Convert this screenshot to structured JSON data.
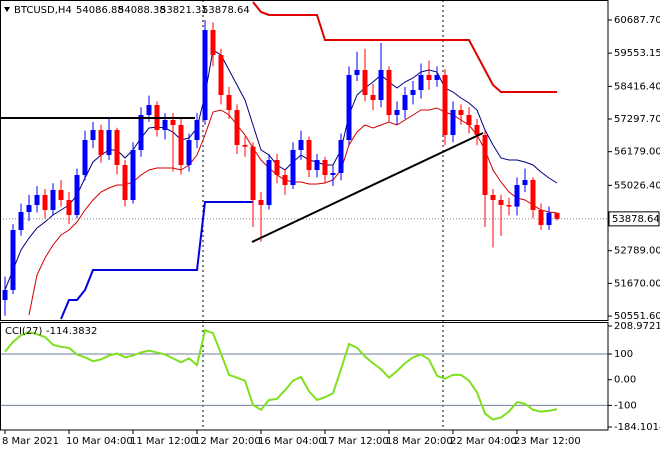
{
  "chart_data": [
    {
      "type": "candlestick",
      "title": "BTCUSD,H4",
      "categories": [
        "8 Mar 2021",
        null,
        null,
        null,
        null,
        null,
        null,
        null,
        "10 Mar 04:00",
        null,
        null,
        null,
        null,
        null,
        null,
        null,
        "11 Mar 12:00",
        null,
        null,
        null,
        null,
        null,
        null,
        null,
        "12 Mar 20:00",
        null,
        null,
        null,
        null,
        null,
        null,
        null,
        "16 Mar 04:00",
        null,
        null,
        null,
        null,
        null,
        null,
        null,
        "17 Mar 12:00",
        null,
        null,
        null,
        null,
        null,
        null,
        null,
        "18 Mar 20:00",
        null,
        null,
        null,
        null,
        null,
        null,
        null,
        "22 Mar 04:00",
        null,
        null,
        null,
        null,
        null,
        null,
        null,
        "23 Mar 12:00",
        null,
        null,
        null,
        null,
        null
      ],
      "open": [
        51100,
        51443,
        53497,
        54114,
        54353,
        54696,
        54182,
        54867,
        54525,
        54011,
        55381,
        56579,
        56921,
        56065,
        56921,
        55723,
        54525,
        56237,
        57435,
        57777,
        56921,
        57264,
        57093,
        55723,
        56579,
        57264,
        60345,
        59489,
        58120,
        57606,
        56408,
        56350,
        54525,
        54353,
        55894,
        55381,
        55038,
        56237,
        56579,
        55552,
        55894,
        55381,
        55450,
        56579,
        58805,
        58976,
        58120,
        57949,
        58976,
        57435,
        57606,
        58120,
        58291,
        58805,
        58633,
        58805,
        56750,
        57606,
        57435,
        57093,
        56750,
        54696,
        54525,
        54353,
        54300,
        55038,
        55210,
        54182,
        53668,
        54086.88
      ],
      "high": [
        51900,
        53700,
        54400,
        54700,
        55000,
        54900,
        55100,
        55200,
        54800,
        55600,
        56900,
        57200,
        57100,
        57300,
        57000,
        55900,
        56500,
        57700,
        58100,
        57900,
        57500,
        57500,
        57300,
        56800,
        57500,
        60688,
        60600,
        59700,
        58400,
        57800,
        56700,
        56500,
        54800,
        56100,
        56100,
        55600,
        56500,
        56900,
        56700,
        56100,
        56000,
        55700,
        56800,
        59100,
        59600,
        59700,
        58500,
        59900,
        59100,
        57900,
        58400,
        58600,
        59200,
        59300,
        59100,
        59000,
        57900,
        57800,
        57700,
        57300,
        56900,
        54900,
        54700,
        54600,
        55300,
        55600,
        55300,
        54400,
        54300,
        54088.38
      ],
      "low": [
        50560,
        51300,
        53300,
        53800,
        54100,
        53900,
        54000,
        54300,
        53700,
        53900,
        55200,
        56300,
        55800,
        55900,
        55400,
        54300,
        54400,
        56000,
        57200,
        56700,
        56600,
        55500,
        55400,
        55500,
        56300,
        57100,
        59100,
        57800,
        57300,
        56100,
        56000,
        53600,
        53100,
        54200,
        55100,
        54700,
        54900,
        55900,
        55300,
        55300,
        55100,
        55000,
        55200,
        56400,
        58600,
        57900,
        57600,
        57700,
        57200,
        57100,
        57300,
        57800,
        58000,
        58300,
        58400,
        56400,
        56500,
        57100,
        56800,
        56400,
        53600,
        52900,
        53300,
        54000,
        54000,
        54800,
        53900,
        53500,
        53500,
        53821.31
      ],
      "close": [
        51443,
        53497,
        54114,
        54353,
        54696,
        54182,
        54867,
        54525,
        54011,
        55381,
        56579,
        56921,
        56065,
        56921,
        55723,
        54525,
        56237,
        57435,
        57777,
        56921,
        57264,
        57093,
        55723,
        56579,
        57264,
        60345,
        59489,
        58120,
        57606,
        56408,
        56350,
        54525,
        54353,
        55894,
        55381,
        55038,
        56237,
        56579,
        55552,
        55894,
        55381,
        55450,
        56579,
        58805,
        58976,
        58120,
        57949,
        58976,
        57435,
        57606,
        58120,
        58291,
        58805,
        58633,
        58805,
        56750,
        57606,
        57435,
        57093,
        56750,
        54696,
        54525,
        54353,
        54300,
        55038,
        55210,
        54182,
        53668,
        54087,
        53878.64
      ],
      "up_color": "#0000ff",
      "down_color": "#ff0000",
      "overlays": [
        {
          "color": "#00007f",
          "width": 1,
          "values": [
            51443,
            52128,
            52813,
            53223,
            53566,
            53771,
            54011,
            54182,
            54353,
            54696,
            55278,
            55826,
            56065,
            56237,
            56237,
            55963,
            56237,
            56647,
            56990,
            57024,
            56990,
            56853,
            56579,
            56647,
            56990,
            58120,
            59661,
            59489,
            58976,
            58462,
            57949,
            57093,
            56237,
            56065,
            55723,
            55552,
            55826,
            56065,
            55894,
            55826,
            55723,
            55723,
            56237,
            57435,
            58120,
            58359,
            58565,
            58805,
            58565,
            58359,
            58565,
            58702,
            58907,
            58976,
            58907,
            58359,
            58222,
            58017,
            57846,
            57606,
            56921,
            56408,
            55963,
            55894,
            55894,
            55826,
            55723,
            55483,
            55278,
            55107
          ]
        },
        {
          "color": "#d00000",
          "width": 1,
          "values": [
            null,
            null,
            null,
            50587,
            51957,
            52539,
            52984,
            53326,
            53497,
            53771,
            54182,
            54525,
            54798,
            54935,
            55038,
            55038,
            55141,
            55381,
            55552,
            55620,
            55620,
            55620,
            55552,
            55723,
            56065,
            56750,
            57538,
            57606,
            57435,
            57093,
            56750,
            56305,
            55894,
            55620,
            55381,
            55209,
            55141,
            55141,
            55072,
            55072,
            55107,
            55209,
            55552,
            56408,
            56853,
            57093,
            56990,
            57093,
            57195,
            57093,
            57264,
            57435,
            57606,
            57606,
            57675,
            57538,
            57435,
            57264,
            57093,
            56750,
            56237,
            55552,
            55141,
            54798,
            54593,
            54525,
            54353,
            54182,
            54114,
            54079
          ]
        },
        {
          "color": "#e00000",
          "width": 2,
          "values": [
            null,
            null,
            null,
            null,
            null,
            null,
            null,
            null,
            null,
            null,
            null,
            null,
            null,
            null,
            null,
            null,
            null,
            null,
            null,
            null,
            null,
            null,
            null,
            null,
            null,
            null,
            null,
            null,
            null,
            null,
            null,
            61304,
            60962,
            60859,
            60859,
            60859,
            60859,
            60859,
            60859,
            60859,
            60003,
            60003,
            60003,
            60003,
            60003,
            60003,
            60003,
            60003,
            60003,
            60003,
            60003,
            60003,
            60003,
            60003,
            60003,
            60003,
            60003,
            60003,
            60003,
            59489,
            58976,
            58462,
            58223,
            58223,
            58223,
            58223,
            58223,
            58223,
            58223,
            58223
          ]
        },
        {
          "color": "#0000e0",
          "width": 2,
          "values": [
            null,
            null,
            null,
            null,
            null,
            null,
            null,
            50450,
            51100,
            51100,
            51443,
            52128,
            52128,
            52128,
            52128,
            52128,
            52128,
            52128,
            52128,
            52128,
            52128,
            52128,
            52128,
            52128,
            52128,
            54456,
            54456,
            54456,
            54456,
            54456,
            54456,
            54456,
            null,
            null,
            null,
            null,
            null,
            null,
            null,
            null,
            null,
            null,
            null,
            null,
            null,
            null,
            null,
            null,
            null,
            null,
            null,
            null,
            null,
            null,
            null,
            null,
            null,
            null,
            null,
            null,
            null,
            null,
            null,
            null,
            null,
            null,
            null,
            null,
            null,
            null
          ]
        }
      ],
      "ylim": [
        50415.7,
        61372.5
      ],
      "yticks": [
        {
          "value": 60687.7,
          "label": "60687.70"
        },
        59553.15,
        {
          "value": 58416.4,
          "label": "58416.40"
        },
        {
          "value": 57297.7,
          "label": "57297.70"
        },
        {
          "value": 56179,
          "label": "56179.00"
        },
        {
          "value": 55026.4,
          "label": "55026.40"
        },
        {
          "value": 52789,
          "label": "52789.00"
        },
        {
          "value": 51670,
          "label": "51670.00"
        },
        {
          "value": 50551.6,
          "label": "50551.60"
        }
      ]
    },
    {
      "type": "line",
      "title": "CCI(27)",
      "color": "#7fe020",
      "values": [
        109,
        147,
        173,
        185,
        177,
        166,
        136,
        128,
        124,
        98,
        87,
        72,
        79,
        94,
        102,
        87,
        94,
        106,
        113,
        106,
        98,
        83,
        68,
        83,
        57,
        192,
        181,
        102,
        19,
        8,
        -4,
        -98,
        -117,
        -79,
        -75,
        -41,
        -4,
        11,
        -45,
        -79,
        -68,
        -53,
        41,
        139,
        124,
        90,
        64,
        41,
        8,
        34,
        64,
        87,
        98,
        79,
        15,
        4,
        19,
        19,
        -4,
        -49,
        -132,
        -155,
        -147,
        -124,
        -87,
        -94,
        -117,
        -124,
        -121,
        -114.3832
      ],
      "ylim": [
        -184.1014,
        208.9721
      ],
      "yticks": [
        208.9721,
        100,
        {
          "value": 0,
          "label": "0.00"
        },
        -100,
        -184.1014
      ],
      "levels": [
        100,
        -100
      ]
    }
  ]
}
